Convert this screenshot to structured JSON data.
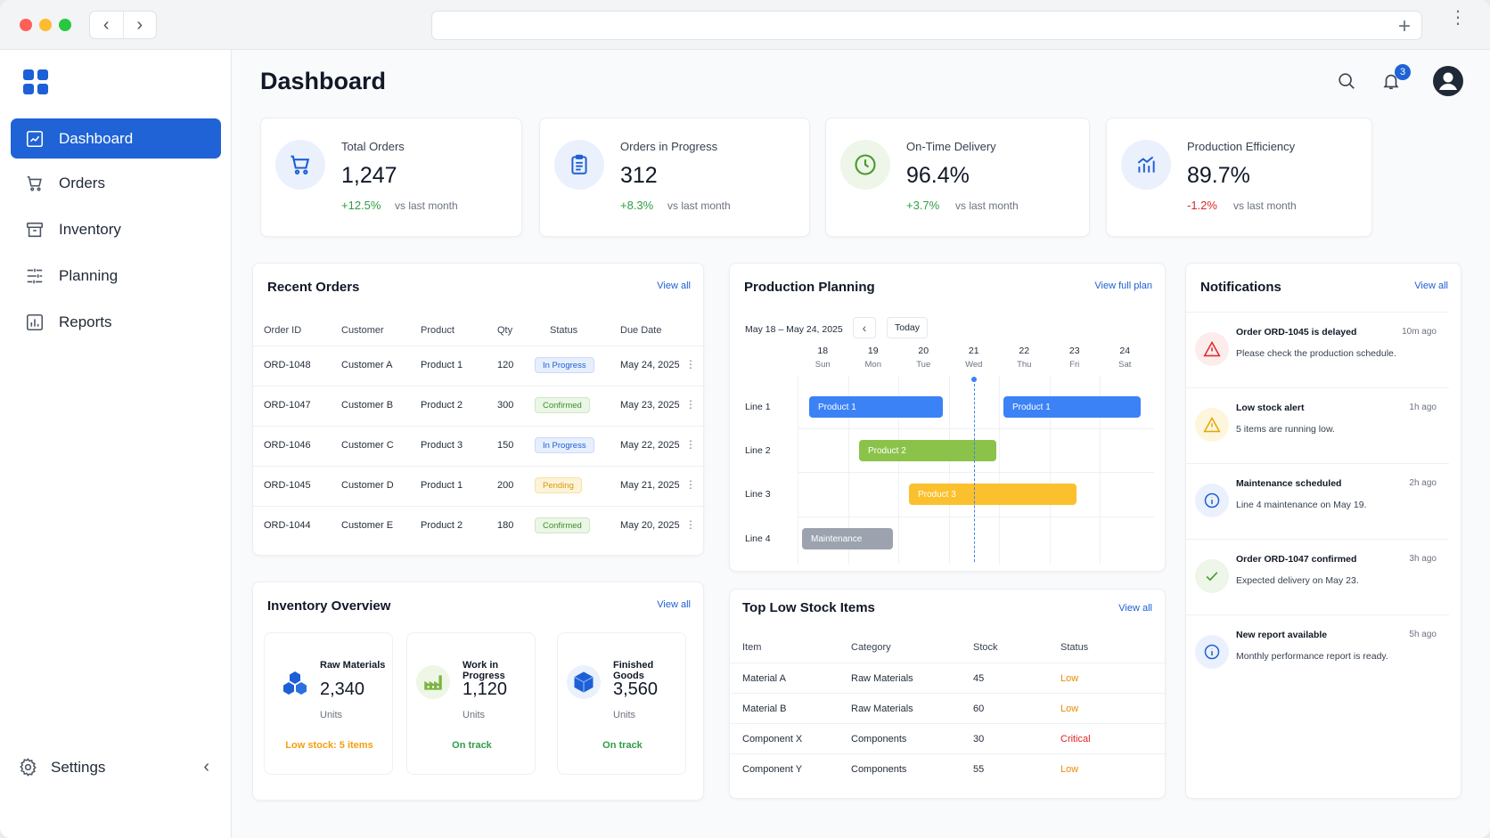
{
  "window": {
    "close_color": "#ff5f57",
    "minimize_color": "#febc2e",
    "maximize_color": "#28c840"
  },
  "sidebar": {
    "items": [
      {
        "label": "Dashboard",
        "icon": "dashboard-icon",
        "active": true
      },
      {
        "label": "Orders",
        "icon": "cart-icon"
      },
      {
        "label": "Inventory",
        "icon": "box-icon"
      },
      {
        "label": "Planning",
        "icon": "planning-icon"
      },
      {
        "label": "Reports",
        "icon": "chart-icon"
      }
    ],
    "settings_label": "Settings"
  },
  "header": {
    "title": "Dashboard",
    "notification_count": "3"
  },
  "kpis": [
    {
      "label": "Total Orders",
      "value": "1,247",
      "delta": "+12.5%",
      "vs": "vs last month",
      "trend": "up"
    },
    {
      "label": "Orders in Progress",
      "value": "312",
      "delta": "+8.3%",
      "vs": "vs last month",
      "trend": "up"
    },
    {
      "label": "On-Time Delivery",
      "value": "96.4%",
      "delta": "+3.7%",
      "vs": "vs last month",
      "trend": "up"
    },
    {
      "label": "Production Efficiency",
      "value": "89.7%",
      "delta": "-1.2%",
      "vs": "vs last month",
      "trend": "down"
    }
  ],
  "recent_orders": {
    "title": "Recent Orders",
    "link": "View all",
    "columns": [
      "Order ID",
      "Customer",
      "Product",
      "Qty",
      "Status",
      "Due Date"
    ],
    "rows": [
      {
        "id": "ORD-1048",
        "customer": "Customer A",
        "product": "Product 1",
        "qty": "120",
        "status": "In Progress",
        "due": "May 24, 2025"
      },
      {
        "id": "ORD-1047",
        "customer": "Customer B",
        "product": "Product 2",
        "qty": "300",
        "status": "Confirmed",
        "due": "May 23, 2025"
      },
      {
        "id": "ORD-1046",
        "customer": "Customer C",
        "product": "Product 3",
        "qty": "150",
        "status": "In Progress",
        "due": "May 22, 2025"
      },
      {
        "id": "ORD-1045",
        "customer": "Customer D",
        "product": "Product 1",
        "qty": "200",
        "status": "Pending",
        "due": "May 21, 2025"
      },
      {
        "id": "ORD-1044",
        "customer": "Customer E",
        "product": "Product 2",
        "qty": "180",
        "status": "Confirmed",
        "due": "May 20, 2025"
      }
    ]
  },
  "planning": {
    "title": "Production Planning",
    "link": "View full plan",
    "range": "May 18 – May 24, 2025",
    "today_label": "Today",
    "days": [
      {
        "num": "18",
        "name": "Sun"
      },
      {
        "num": "19",
        "name": "Mon"
      },
      {
        "num": "20",
        "name": "Tue"
      },
      {
        "num": "21",
        "name": "Wed"
      },
      {
        "num": "22",
        "name": "Thu"
      },
      {
        "num": "23",
        "name": "Fri"
      },
      {
        "num": "24",
        "name": "Sat"
      }
    ],
    "lines": [
      "Line 1",
      "Line 2",
      "Line 3",
      "Line 4"
    ],
    "bars": [
      {
        "label": "Product 1",
        "line": 0,
        "color": "#3b82f6"
      },
      {
        "label": "Product 1",
        "line": 0,
        "color": "#3b82f6"
      },
      {
        "label": "Product 2",
        "line": 1,
        "color": "#8bc34a"
      },
      {
        "label": "Product 3",
        "line": 2,
        "color": "#fbc02d"
      },
      {
        "label": "Maintenance",
        "line": 3,
        "color": "#9ca3af"
      }
    ]
  },
  "notifications": {
    "title": "Notifications",
    "link": "View all",
    "items": [
      {
        "title": "Order ORD-1045 is delayed",
        "message": "Please check the production schedule.",
        "time": "10m ago",
        "icon": "alert-icon"
      },
      {
        "title": "Low stock alert",
        "message": "5 items are running low.",
        "time": "1h ago",
        "icon": "warning-icon"
      },
      {
        "title": "Maintenance scheduled",
        "message": "Line 4 maintenance on May 19.",
        "time": "2h ago",
        "icon": "info-icon"
      },
      {
        "title": "Order ORD-1047 confirmed",
        "message": "Expected delivery on May 23.",
        "time": "3h ago",
        "icon": "check-icon"
      },
      {
        "title": "New report available",
        "message": "Monthly performance report is ready.",
        "time": "5h ago",
        "icon": "info-icon"
      }
    ]
  },
  "inventory": {
    "title": "Inventory Overview",
    "link": "View all",
    "items": [
      {
        "name": "Raw Materials",
        "value": "2,340",
        "units": "Units",
        "status": "Low stock: 5 items",
        "icon": "cubes-icon"
      },
      {
        "name": "Work in Progress",
        "value": "1,120",
        "units": "Units",
        "status": "On track",
        "icon": "factory-icon"
      },
      {
        "name": "Finished Goods",
        "value": "3,560",
        "units": "Units",
        "status": "On track",
        "icon": "package-icon"
      }
    ]
  },
  "low_stock": {
    "title": "Top Low Stock Items",
    "link": "View all",
    "columns": [
      "Item",
      "Category",
      "Stock",
      "Status"
    ],
    "rows": [
      {
        "item": "Material A",
        "category": "Raw Materials",
        "stock": "45",
        "status": "Low"
      },
      {
        "item": "Material B",
        "category": "Raw Materials",
        "stock": "60",
        "status": "Low"
      },
      {
        "item": "Component X",
        "category": "Components",
        "stock": "30",
        "status": "Critical"
      },
      {
        "item": "Component Y",
        "category": "Components",
        "stock": "55",
        "status": "Low"
      }
    ]
  }
}
